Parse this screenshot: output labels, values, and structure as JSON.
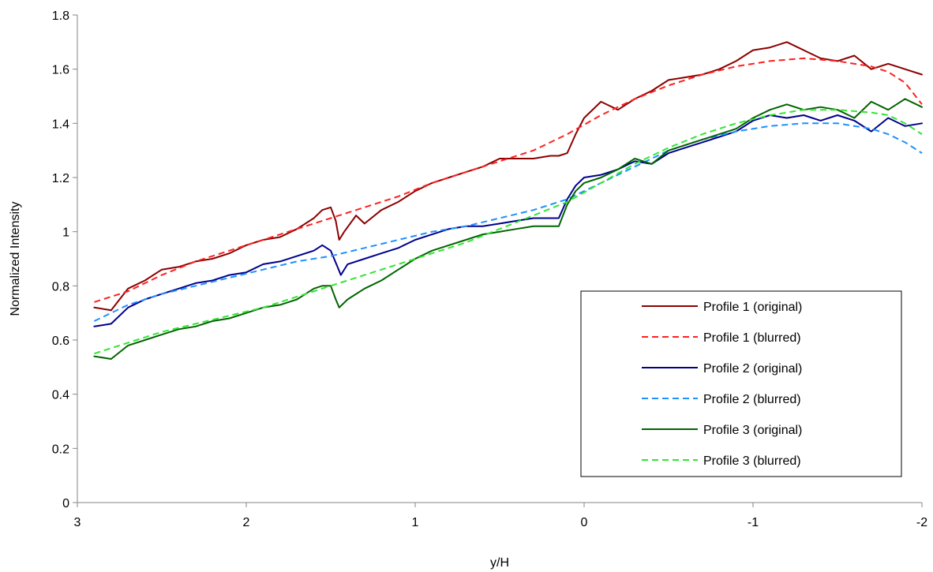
{
  "chart_data": {
    "type": "line",
    "title": "",
    "xlabel": "y/H",
    "ylabel": "Normalized Intensity",
    "xlim": [
      3,
      -2
    ],
    "ylim": [
      0,
      1.8
    ],
    "x_reversed": true,
    "x_ticks": [
      3,
      2,
      1,
      0,
      -1,
      -2
    ],
    "y_ticks": [
      0,
      0.2,
      0.4,
      0.6,
      0.8,
      1,
      1.2,
      1.4,
      1.6,
      1.8
    ],
    "x_tick_labels": [
      "3",
      "2",
      "1",
      "0",
      "-1",
      "-2"
    ],
    "y_tick_labels": [
      "0",
      "0.2",
      "0.4",
      "0.6",
      "0.8",
      "1",
      "1.2",
      "1.4",
      "1.6",
      "1.8"
    ],
    "grid": false,
    "legend_position": "bottom-right",
    "series": [
      {
        "name": "Profile 1 (original)",
        "color": "#8b0000",
        "dash": "solid",
        "points": [
          [
            2.9,
            0.72
          ],
          [
            2.8,
            0.71
          ],
          [
            2.7,
            0.79
          ],
          [
            2.6,
            0.82
          ],
          [
            2.5,
            0.86
          ],
          [
            2.4,
            0.87
          ],
          [
            2.3,
            0.89
          ],
          [
            2.2,
            0.9
          ],
          [
            2.1,
            0.92
          ],
          [
            2.0,
            0.95
          ],
          [
            1.9,
            0.97
          ],
          [
            1.8,
            0.98
          ],
          [
            1.7,
            1.01
          ],
          [
            1.6,
            1.05
          ],
          [
            1.55,
            1.08
          ],
          [
            1.5,
            1.09
          ],
          [
            1.47,
            1.04
          ],
          [
            1.45,
            0.97
          ],
          [
            1.42,
            1.0
          ],
          [
            1.35,
            1.06
          ],
          [
            1.3,
            1.03
          ],
          [
            1.2,
            1.08
          ],
          [
            1.1,
            1.11
          ],
          [
            1.0,
            1.15
          ],
          [
            0.9,
            1.18
          ],
          [
            0.8,
            1.2
          ],
          [
            0.7,
            1.22
          ],
          [
            0.6,
            1.24
          ],
          [
            0.5,
            1.27
          ],
          [
            0.4,
            1.27
          ],
          [
            0.3,
            1.27
          ],
          [
            0.2,
            1.28
          ],
          [
            0.15,
            1.28
          ],
          [
            0.1,
            1.29
          ],
          [
            0.05,
            1.36
          ],
          [
            0.0,
            1.42
          ],
          [
            -0.1,
            1.48
          ],
          [
            -0.2,
            1.45
          ],
          [
            -0.3,
            1.49
          ],
          [
            -0.4,
            1.52
          ],
          [
            -0.5,
            1.56
          ],
          [
            -0.6,
            1.57
          ],
          [
            -0.7,
            1.58
          ],
          [
            -0.8,
            1.6
          ],
          [
            -0.9,
            1.63
          ],
          [
            -1.0,
            1.67
          ],
          [
            -1.1,
            1.68
          ],
          [
            -1.2,
            1.7
          ],
          [
            -1.3,
            1.67
          ],
          [
            -1.4,
            1.64
          ],
          [
            -1.5,
            1.63
          ],
          [
            -1.6,
            1.65
          ],
          [
            -1.7,
            1.6
          ],
          [
            -1.8,
            1.62
          ],
          [
            -1.9,
            1.6
          ],
          [
            -2.0,
            1.58
          ]
        ]
      },
      {
        "name": "Profile 1 (blurred)",
        "color": "#ff2020",
        "dash": "dashed",
        "points": [
          [
            2.9,
            0.74
          ],
          [
            2.7,
            0.78
          ],
          [
            2.5,
            0.84
          ],
          [
            2.3,
            0.89
          ],
          [
            2.1,
            0.93
          ],
          [
            1.9,
            0.97
          ],
          [
            1.7,
            1.01
          ],
          [
            1.5,
            1.05
          ],
          [
            1.3,
            1.09
          ],
          [
            1.1,
            1.13
          ],
          [
            0.9,
            1.18
          ],
          [
            0.7,
            1.22
          ],
          [
            0.5,
            1.26
          ],
          [
            0.3,
            1.3
          ],
          [
            0.1,
            1.36
          ],
          [
            -0.1,
            1.43
          ],
          [
            -0.3,
            1.49
          ],
          [
            -0.5,
            1.54
          ],
          [
            -0.7,
            1.58
          ],
          [
            -0.9,
            1.61
          ],
          [
            -1.1,
            1.63
          ],
          [
            -1.3,
            1.64
          ],
          [
            -1.5,
            1.63
          ],
          [
            -1.7,
            1.61
          ],
          [
            -1.8,
            1.59
          ],
          [
            -1.9,
            1.55
          ],
          [
            -2.0,
            1.47
          ]
        ]
      },
      {
        "name": "Profile 2 (original)",
        "color": "#00008b",
        "dash": "solid",
        "points": [
          [
            2.9,
            0.65
          ],
          [
            2.8,
            0.66
          ],
          [
            2.7,
            0.72
          ],
          [
            2.6,
            0.75
          ],
          [
            2.5,
            0.77
          ],
          [
            2.4,
            0.79
          ],
          [
            2.3,
            0.81
          ],
          [
            2.2,
            0.82
          ],
          [
            2.1,
            0.84
          ],
          [
            2.0,
            0.85
          ],
          [
            1.9,
            0.88
          ],
          [
            1.8,
            0.89
          ],
          [
            1.7,
            0.91
          ],
          [
            1.6,
            0.93
          ],
          [
            1.55,
            0.95
          ],
          [
            1.5,
            0.93
          ],
          [
            1.46,
            0.87
          ],
          [
            1.44,
            0.84
          ],
          [
            1.4,
            0.88
          ],
          [
            1.3,
            0.9
          ],
          [
            1.2,
            0.92
          ],
          [
            1.1,
            0.94
          ],
          [
            1.0,
            0.97
          ],
          [
            0.9,
            0.99
          ],
          [
            0.8,
            1.01
          ],
          [
            0.7,
            1.02
          ],
          [
            0.6,
            1.02
          ],
          [
            0.5,
            1.03
          ],
          [
            0.4,
            1.04
          ],
          [
            0.3,
            1.05
          ],
          [
            0.2,
            1.05
          ],
          [
            0.15,
            1.05
          ],
          [
            0.1,
            1.12
          ],
          [
            0.05,
            1.17
          ],
          [
            0.0,
            1.2
          ],
          [
            -0.1,
            1.21
          ],
          [
            -0.2,
            1.23
          ],
          [
            -0.3,
            1.26
          ],
          [
            -0.4,
            1.25
          ],
          [
            -0.5,
            1.29
          ],
          [
            -0.6,
            1.31
          ],
          [
            -0.7,
            1.33
          ],
          [
            -0.8,
            1.35
          ],
          [
            -0.9,
            1.37
          ],
          [
            -1.0,
            1.41
          ],
          [
            -1.1,
            1.43
          ],
          [
            -1.2,
            1.42
          ],
          [
            -1.3,
            1.43
          ],
          [
            -1.4,
            1.41
          ],
          [
            -1.5,
            1.43
          ],
          [
            -1.6,
            1.41
          ],
          [
            -1.7,
            1.37
          ],
          [
            -1.8,
            1.42
          ],
          [
            -1.9,
            1.39
          ],
          [
            -2.0,
            1.4
          ]
        ]
      },
      {
        "name": "Profile 2 (blurred)",
        "color": "#1e90ff",
        "dash": "dashed",
        "points": [
          [
            2.9,
            0.67
          ],
          [
            2.7,
            0.73
          ],
          [
            2.5,
            0.77
          ],
          [
            2.3,
            0.8
          ],
          [
            2.1,
            0.83
          ],
          [
            1.9,
            0.86
          ],
          [
            1.7,
            0.89
          ],
          [
            1.5,
            0.91
          ],
          [
            1.3,
            0.94
          ],
          [
            1.1,
            0.97
          ],
          [
            0.9,
            1.0
          ],
          [
            0.7,
            1.02
          ],
          [
            0.5,
            1.05
          ],
          [
            0.3,
            1.08
          ],
          [
            0.1,
            1.12
          ],
          [
            -0.1,
            1.18
          ],
          [
            -0.3,
            1.24
          ],
          [
            -0.5,
            1.3
          ],
          [
            -0.7,
            1.34
          ],
          [
            -0.9,
            1.37
          ],
          [
            -1.1,
            1.39
          ],
          [
            -1.3,
            1.4
          ],
          [
            -1.5,
            1.4
          ],
          [
            -1.7,
            1.38
          ],
          [
            -1.8,
            1.36
          ],
          [
            -1.9,
            1.33
          ],
          [
            -2.0,
            1.29
          ]
        ]
      },
      {
        "name": "Profile 3 (original)",
        "color": "#006400",
        "dash": "solid",
        "points": [
          [
            2.9,
            0.54
          ],
          [
            2.8,
            0.53
          ],
          [
            2.7,
            0.58
          ],
          [
            2.6,
            0.6
          ],
          [
            2.5,
            0.62
          ],
          [
            2.4,
            0.64
          ],
          [
            2.3,
            0.65
          ],
          [
            2.2,
            0.67
          ],
          [
            2.1,
            0.68
          ],
          [
            2.0,
            0.7
          ],
          [
            1.9,
            0.72
          ],
          [
            1.8,
            0.73
          ],
          [
            1.7,
            0.75
          ],
          [
            1.6,
            0.79
          ],
          [
            1.55,
            0.8
          ],
          [
            1.5,
            0.8
          ],
          [
            1.47,
            0.75
          ],
          [
            1.45,
            0.72
          ],
          [
            1.4,
            0.75
          ],
          [
            1.3,
            0.79
          ],
          [
            1.2,
            0.82
          ],
          [
            1.1,
            0.86
          ],
          [
            1.0,
            0.9
          ],
          [
            0.9,
            0.93
          ],
          [
            0.8,
            0.95
          ],
          [
            0.7,
            0.97
          ],
          [
            0.6,
            0.99
          ],
          [
            0.5,
            1.0
          ],
          [
            0.4,
            1.01
          ],
          [
            0.3,
            1.02
          ],
          [
            0.2,
            1.02
          ],
          [
            0.15,
            1.02
          ],
          [
            0.1,
            1.1
          ],
          [
            0.05,
            1.15
          ],
          [
            0.0,
            1.18
          ],
          [
            -0.1,
            1.2
          ],
          [
            -0.2,
            1.23
          ],
          [
            -0.3,
            1.27
          ],
          [
            -0.4,
            1.25
          ],
          [
            -0.5,
            1.3
          ],
          [
            -0.6,
            1.32
          ],
          [
            -0.7,
            1.34
          ],
          [
            -0.8,
            1.36
          ],
          [
            -0.9,
            1.38
          ],
          [
            -1.0,
            1.42
          ],
          [
            -1.1,
            1.45
          ],
          [
            -1.2,
            1.47
          ],
          [
            -1.3,
            1.45
          ],
          [
            -1.4,
            1.46
          ],
          [
            -1.5,
            1.45
          ],
          [
            -1.6,
            1.42
          ],
          [
            -1.7,
            1.48
          ],
          [
            -1.8,
            1.45
          ],
          [
            -1.9,
            1.49
          ],
          [
            -2.0,
            1.46
          ]
        ]
      },
      {
        "name": "Profile 3 (blurred)",
        "color": "#32e632",
        "dash": "dashed",
        "points": [
          [
            2.9,
            0.55
          ],
          [
            2.7,
            0.59
          ],
          [
            2.5,
            0.63
          ],
          [
            2.3,
            0.66
          ],
          [
            2.1,
            0.69
          ],
          [
            1.9,
            0.72
          ],
          [
            1.7,
            0.76
          ],
          [
            1.5,
            0.8
          ],
          [
            1.3,
            0.84
          ],
          [
            1.1,
            0.88
          ],
          [
            0.9,
            0.92
          ],
          [
            0.7,
            0.96
          ],
          [
            0.5,
            1.01
          ],
          [
            0.3,
            1.06
          ],
          [
            0.1,
            1.11
          ],
          [
            -0.1,
            1.18
          ],
          [
            -0.3,
            1.25
          ],
          [
            -0.5,
            1.31
          ],
          [
            -0.7,
            1.36
          ],
          [
            -0.9,
            1.4
          ],
          [
            -1.1,
            1.43
          ],
          [
            -1.3,
            1.45
          ],
          [
            -1.5,
            1.45
          ],
          [
            -1.7,
            1.44
          ],
          [
            -1.8,
            1.43
          ],
          [
            -1.9,
            1.4
          ],
          [
            -2.0,
            1.36
          ]
        ]
      }
    ]
  }
}
